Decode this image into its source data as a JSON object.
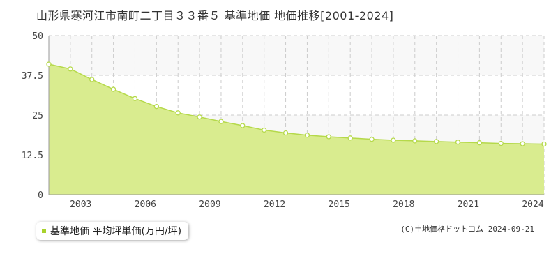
{
  "title": "山形県寒河江市南町二丁目３３番５ 基準地価 地価推移[2001-2024]",
  "legend": {
    "label": "基準地価 平均坪単価(万円/坪)"
  },
  "credit": "(C)土地価格ドットコム 2024-09-21",
  "colors": {
    "area_fill": "#d9ec8f",
    "line": "#b5d94a",
    "point_stroke": "#b5d94a",
    "point_fill": "#ffffff",
    "grid": "#cccccc",
    "band": "#f8f8f8",
    "legend_marker": "#a8d22c"
  },
  "chart_data": {
    "type": "area",
    "title": "山形県寒河江市南町二丁目３３番５ 基準地価 地価推移[2001-2024]",
    "xlim": [
      2001,
      2024
    ],
    "ylim": [
      0,
      50
    ],
    "yticks": [
      0,
      12.5,
      25,
      37.5,
      50
    ],
    "ytick_labels": [
      "0",
      "12.5",
      "25",
      "37.5",
      "50"
    ],
    "xticks": [
      2003,
      2006,
      2009,
      2012,
      2015,
      2018,
      2021,
      2024
    ],
    "xtick_labels": [
      "2003",
      "2006",
      "2009",
      "2012",
      "2015",
      "2018",
      "2021",
      "2024"
    ],
    "grid": true,
    "series": [
      {
        "name": "基準地価 平均坪単価(万円/坪)",
        "x": [
          2001,
          2002,
          2003,
          2004,
          2005,
          2006,
          2007,
          2008,
          2009,
          2010,
          2011,
          2012,
          2013,
          2014,
          2015,
          2016,
          2017,
          2018,
          2019,
          2020,
          2021,
          2022,
          2023,
          2024
        ],
        "values": [
          41,
          39.5,
          36.2,
          33.1,
          30.2,
          27.7,
          25.7,
          24.4,
          23,
          21.7,
          20.3,
          19.4,
          18.7,
          18.2,
          17.8,
          17.4,
          17.1,
          16.9,
          16.7,
          16.5,
          16.3,
          16.1,
          16.0,
          15.9
        ]
      }
    ]
  }
}
